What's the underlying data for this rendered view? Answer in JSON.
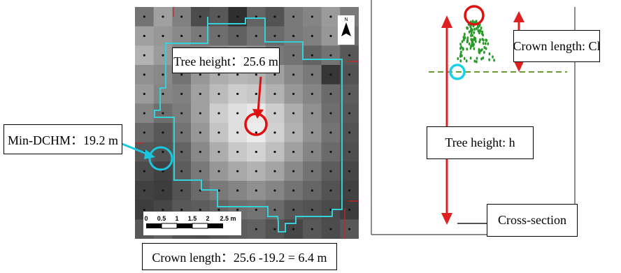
{
  "left_panel": {
    "tree_height_label": "Tree height：25.6 m",
    "min_dchm_label": "Min-DCHM：19.2 m",
    "north_label": "N",
    "scale_bar": {
      "ticks": [
        "0",
        "0.5",
        "1",
        "1.5",
        "2",
        "2.5 m"
      ]
    },
    "grid_values": [
      [
        0.42,
        0.62,
        0.48,
        0.25,
        0.3,
        0.12,
        0.35,
        0.28,
        0.45,
        0.5,
        0.6,
        0.45
      ],
      [
        0.62,
        0.58,
        0.52,
        0.45,
        0.4,
        0.34,
        0.42,
        0.38,
        0.45,
        0.48,
        0.58,
        0.4
      ],
      [
        0.7,
        0.6,
        0.48,
        0.5,
        0.55,
        0.58,
        0.55,
        0.45,
        0.42,
        0.35,
        0.42,
        0.3
      ],
      [
        0.55,
        0.52,
        0.42,
        0.58,
        0.68,
        0.72,
        0.7,
        0.62,
        0.52,
        0.45,
        0.15,
        0.28
      ],
      [
        0.6,
        0.5,
        0.48,
        0.62,
        0.74,
        0.82,
        0.8,
        0.7,
        0.58,
        0.5,
        0.38,
        0.32
      ],
      [
        0.5,
        0.4,
        0.46,
        0.62,
        0.82,
        0.9,
        0.94,
        0.82,
        0.68,
        0.55,
        0.4,
        0.3
      ],
      [
        0.38,
        0.3,
        0.42,
        0.58,
        0.78,
        0.9,
        0.96,
        0.84,
        0.7,
        0.56,
        0.42,
        0.28
      ],
      [
        0.3,
        0.28,
        0.35,
        0.52,
        0.68,
        0.8,
        0.85,
        0.76,
        0.62,
        0.5,
        0.38,
        0.26
      ],
      [
        0.25,
        0.2,
        0.32,
        0.45,
        0.58,
        0.66,
        0.7,
        0.64,
        0.52,
        0.42,
        0.32,
        0.22
      ],
      [
        0.2,
        0.18,
        0.28,
        0.38,
        0.45,
        0.5,
        0.55,
        0.5,
        0.42,
        0.36,
        0.28,
        0.2
      ],
      [
        0.18,
        0.22,
        0.3,
        0.32,
        0.36,
        0.4,
        0.42,
        0.38,
        0.3,
        0.28,
        0.24,
        0.18
      ],
      [
        0.3,
        0.35,
        0.28,
        0.26,
        0.3,
        0.32,
        0.34,
        0.28,
        0.22,
        0.3,
        0.25,
        0.3
      ]
    ],
    "colors": {
      "crown_outline": "#38d0d8",
      "tree_top_circle": "#e01010",
      "min_dchm_circle": "#18c8e0",
      "arrow": "#e01010",
      "grid_red_lines": "#d02020"
    }
  },
  "right_panel": {
    "crown_length_label": "Crown length: Cl",
    "tree_height_label": "Tree height: h",
    "cross_section_label": "Cross-section",
    "colors": {
      "arrows": "#e02020",
      "dashed_line": "#6a9a30",
      "foliage": "#2a9a2a",
      "top_circle": "#e01010",
      "base_circle": "#18d0e8"
    }
  },
  "bottom": {
    "crown_length_formula": "Crown length：25.6 -19.2 = 6.4 m"
  }
}
